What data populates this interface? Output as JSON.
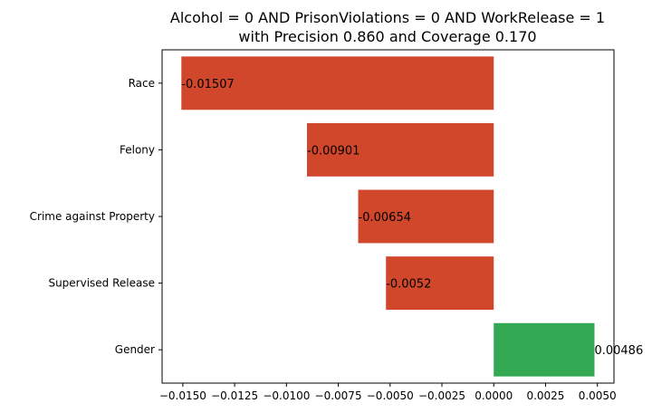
{
  "chart_data": {
    "type": "bar",
    "orientation": "horizontal",
    "title_line1": "Alcohol = 0 AND PrisonViolations = 0 AND WorkRelease = 1",
    "title_line2": "with Precision 0.860 and Coverage 0.170",
    "categories": [
      "Race",
      "Felony",
      "Crime against Property",
      "Supervised Release",
      "Gender"
    ],
    "values": [
      -0.01507,
      -0.00901,
      -0.00654,
      -0.0052,
      0.00486
    ],
    "value_labels": [
      "-0.01507",
      "-0.00901",
      "-0.00654",
      "-0.0052",
      "0.00486"
    ],
    "xlim": [
      -0.016,
      0.0058
    ],
    "xticks": [
      -0.015,
      -0.0125,
      -0.01,
      -0.0075,
      -0.005,
      -0.0025,
      0.0,
      0.0025,
      0.005
    ],
    "xtick_labels": [
      "−0.0150",
      "−0.0125",
      "−0.0100",
      "−0.0075",
      "−0.0050",
      "−0.0025",
      "0.0000",
      "0.0025",
      "0.0050"
    ],
    "xlabel": "",
    "ylabel": "",
    "grid": false,
    "colors": {
      "negative": "#d1472b",
      "positive": "#33a853"
    }
  }
}
